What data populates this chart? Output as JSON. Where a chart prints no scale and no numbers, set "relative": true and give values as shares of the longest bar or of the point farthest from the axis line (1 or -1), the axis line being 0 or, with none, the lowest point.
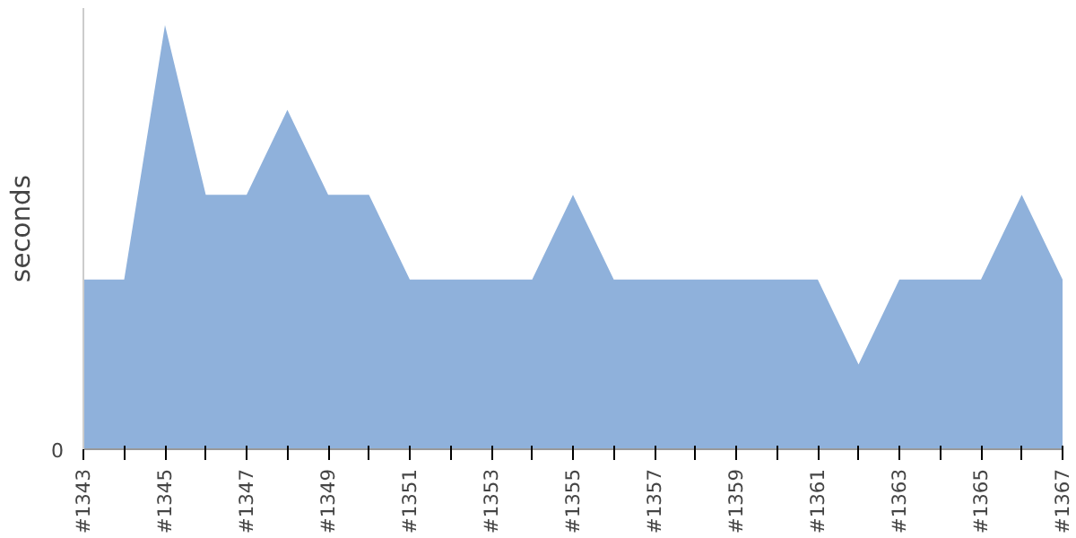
{
  "chart_data": {
    "type": "area",
    "ylabel": "seconds",
    "relative": true,
    "annotations": [
      "0"
    ],
    "color": "#8fb1db",
    "grid": false,
    "categories": [
      "#1343",
      null,
      "#1345",
      null,
      "#1347",
      null,
      "#1349",
      null,
      "#1351",
      null,
      "#1353",
      null,
      "#1355",
      null,
      "#1357",
      null,
      "#1359",
      null,
      "#1361",
      null,
      "#1363",
      null,
      "#1365",
      null,
      "#1367"
    ],
    "values": [
      0.4,
      0.4,
      1,
      0.6,
      0.6,
      0.8,
      0.6,
      0.6,
      0.4,
      0.4,
      0.4,
      0.4,
      0.6,
      0.4,
      0.4,
      0.4,
      0.4,
      0.4,
      0.4,
      0.2,
      0.4,
      0.4,
      0.4,
      0.6,
      0.4
    ]
  }
}
